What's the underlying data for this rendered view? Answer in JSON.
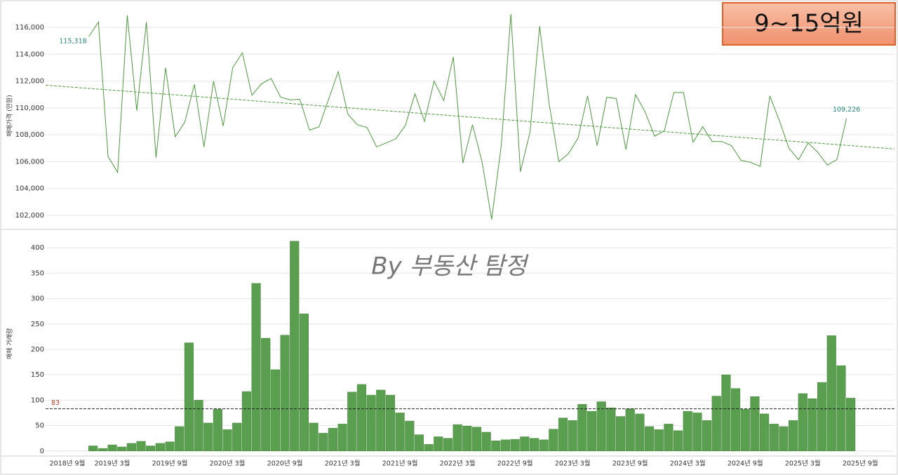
{
  "title_box": "9~15억원",
  "watermark": "By 부동산 탐정",
  "chart_data": [
    {
      "type": "line",
      "y_label": "매매가격 (만원)",
      "color": "#4e9a3f",
      "grid": true,
      "ylim": [
        101060,
        117780
      ],
      "yticks": [
        {
          "value": 102000,
          "label": "102,000"
        },
        {
          "value": 104000,
          "label": "104,000"
        },
        {
          "value": 106000,
          "label": "106,000"
        },
        {
          "value": 108000,
          "label": "108,000"
        },
        {
          "value": 110000,
          "label": "110,000"
        },
        {
          "value": 112000,
          "label": "112,000"
        },
        {
          "value": 114000,
          "label": "114,000"
        },
        {
          "value": 116000,
          "label": "116,000"
        }
      ],
      "trendline": [
        111700,
        106950
      ],
      "values": [
        null,
        null,
        null,
        null,
        115318,
        116400,
        106400,
        105200,
        116900,
        109800,
        116400,
        106300,
        113000,
        107850,
        108950,
        111750,
        107100,
        112000,
        108650,
        113000,
        114100,
        110950,
        111800,
        112200,
        110800,
        110600,
        110650,
        108350,
        108600,
        110650,
        112700,
        109550,
        108750,
        108550,
        107100,
        107400,
        107700,
        108700,
        111050,
        109000,
        112000,
        110550,
        113800,
        105900,
        108750,
        106000,
        101700,
        107200,
        117000,
        105250,
        108200,
        116100,
        110300,
        106000,
        106600,
        107750,
        110900,
        107200,
        110800,
        110700,
        106900,
        111000,
        109700,
        107900,
        108300,
        111150,
        111150,
        107450,
        108600,
        107500,
        107500,
        107200,
        106100,
        105950,
        105650,
        110900,
        109050,
        107000,
        106150,
        107400,
        106700,
        105750,
        106150,
        109226,
        null
      ],
      "value_labels": [
        null,
        null,
        null,
        null,
        "115,318",
        null,
        null,
        null,
        null,
        null,
        null,
        null,
        null,
        null,
        null,
        null,
        null,
        null,
        null,
        null,
        null,
        null,
        null,
        null,
        null,
        null,
        null,
        null,
        null,
        null,
        null,
        null,
        null,
        null,
        null,
        null,
        null,
        null,
        null,
        null,
        null,
        null,
        null,
        null,
        null,
        null,
        null,
        null,
        null,
        null,
        null,
        null,
        null,
        null,
        null,
        null,
        null,
        null,
        null,
        null,
        null,
        null,
        null,
        null,
        null,
        null,
        null,
        null,
        null,
        null,
        null,
        null,
        null,
        null,
        null,
        null,
        null,
        null,
        null,
        null,
        null,
        null,
        null,
        "109,226",
        null
      ]
    },
    {
      "type": "bar",
      "y_label": "매매 거래량",
      "color": "#5a9e4f",
      "grid": true,
      "ylim": [
        -10,
        432
      ],
      "yticks": [
        0,
        50,
        100,
        150,
        200,
        250,
        300,
        350,
        400
      ],
      "reference_line": 83,
      "categories": [
        "2018년 9월",
        null,
        null,
        null,
        null,
        null,
        "2019년 3월",
        null,
        null,
        null,
        null,
        null,
        "2019년 9월",
        null,
        null,
        null,
        null,
        null,
        "2020년 3월",
        null,
        null,
        null,
        null,
        null,
        "2020년 9월",
        null,
        null,
        null,
        null,
        null,
        "2021년 3월",
        null,
        null,
        null,
        null,
        null,
        "2021년 9월",
        null,
        null,
        null,
        null,
        null,
        "2022년 3월",
        null,
        null,
        null,
        null,
        null,
        "2022년 9월",
        null,
        null,
        null,
        null,
        null,
        "2023년 3월",
        null,
        null,
        null,
        null,
        null,
        "2023년 9월",
        null,
        null,
        null,
        null,
        null,
        "2024년 3월",
        null,
        null,
        null,
        null,
        null,
        "2024년 9월",
        null,
        null,
        null,
        null,
        null,
        "2025년 3월",
        null,
        null,
        null,
        null,
        null,
        "2025년 9월"
      ],
      "values": [
        null,
        null,
        null,
        null,
        10,
        5,
        12,
        8,
        15,
        19,
        10,
        15,
        18,
        48,
        213,
        100,
        55,
        82,
        42,
        55,
        117,
        330,
        222,
        160,
        228,
        413,
        270,
        55,
        35,
        45,
        53,
        116,
        131,
        110,
        120,
        110,
        75,
        59,
        32,
        13,
        28,
        25,
        52,
        49,
        47,
        37,
        20,
        22,
        23,
        28,
        25,
        22,
        43,
        65,
        60,
        92,
        78,
        97,
        85,
        68,
        83,
        73,
        48,
        42,
        53,
        40,
        78,
        75,
        60,
        108,
        150,
        123,
        82,
        107,
        73,
        53,
        48,
        60,
        113,
        103,
        135,
        227,
        168,
        104,
        null
      ]
    }
  ]
}
